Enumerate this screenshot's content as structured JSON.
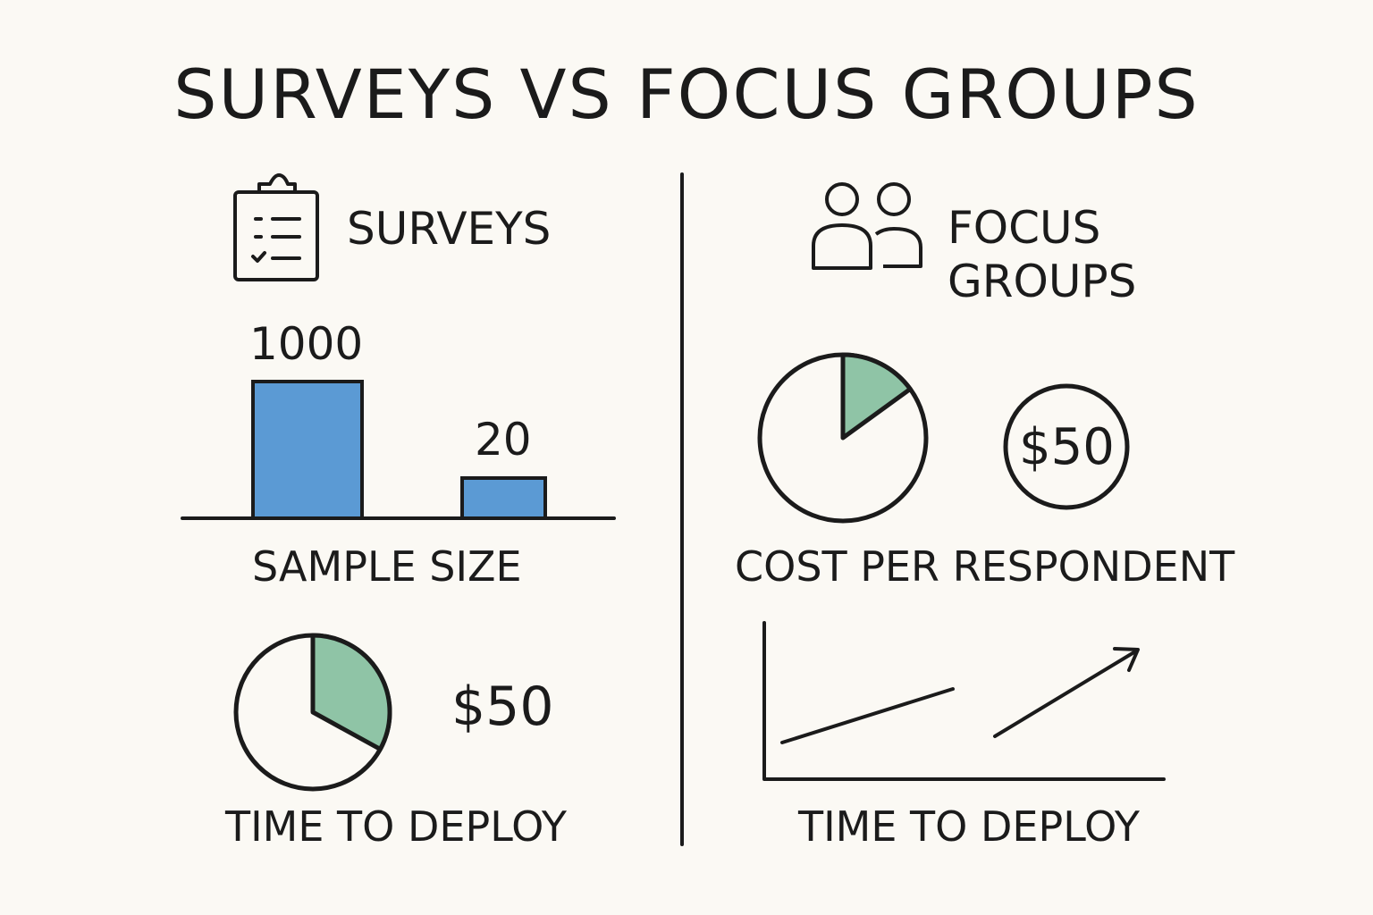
{
  "title": "SURVEYS VS FOCUS GROUPS",
  "colors": {
    "background": "#fbf9f4",
    "ink": "#1b1b1b",
    "bar_fill": "#5b9ad4",
    "pie_fill": "#8fc4a6"
  },
  "surveys": {
    "heading": "SURVEYS",
    "icon": "clipboard-checklist-icon",
    "sample_size": {
      "label": "SAMPLE SIZE",
      "bars": [
        {
          "value": 1000,
          "label": "1000"
        },
        {
          "value": 20,
          "label": "20"
        }
      ]
    },
    "time_to_deploy": {
      "label": "TIME TO DEPLOY",
      "pie_fraction": 0.33,
      "price": "$50"
    }
  },
  "focus_groups": {
    "heading_line1": "FOCUS",
    "heading_line2": "GROUPS",
    "icon": "people-group-icon",
    "cost_per_respondent": {
      "label": "COST PER RESPONDENT",
      "pie_fraction": 0.15,
      "price": "$50"
    },
    "time_to_deploy": {
      "label": "TIME TO DEPLOY",
      "trend": "upward",
      "icon": "arrow-up-right-icon"
    }
  }
}
